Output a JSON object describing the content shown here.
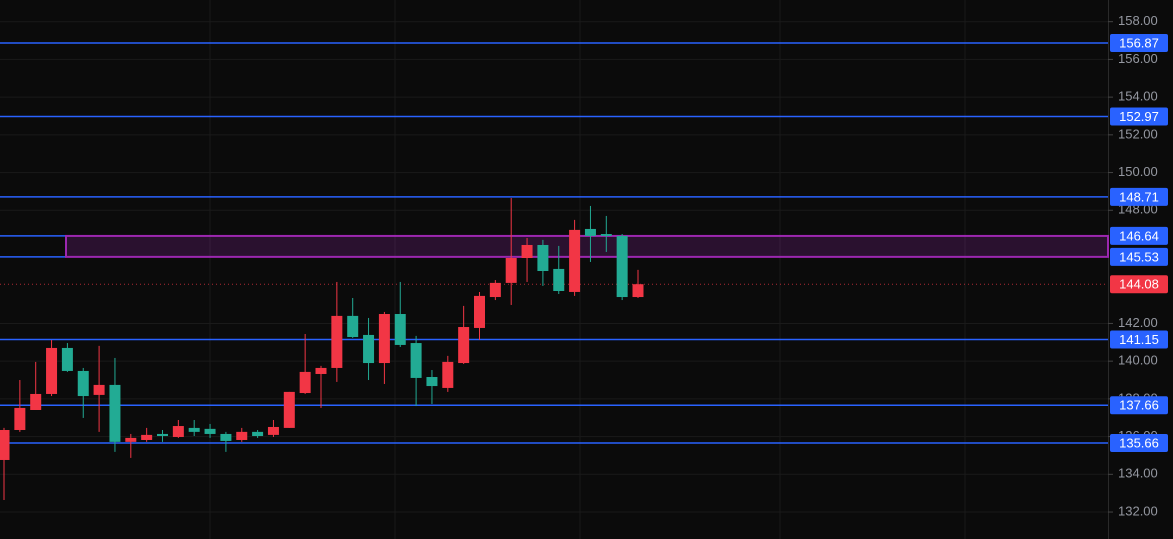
{
  "chart_data": {
    "type": "candlestick",
    "open": [
      134.76,
      136.35,
      137.41,
      138.26,
      140.7,
      139.48,
      138.21,
      138.74,
      135.72,
      135.82,
      136.14,
      135.98,
      136.46,
      136.41,
      136.14,
      135.82,
      136.25,
      136.09,
      136.46,
      138.31,
      139.32,
      139.64,
      142.4,
      141.39,
      139.9,
      142.5,
      140.96,
      139.16,
      138.58,
      139.9,
      141.76,
      143.4,
      144.15,
      145.47,
      146.16,
      144.89,
      143.67,
      147.01,
      146.74,
      146.64,
      143.4
    ],
    "high": [
      136.46,
      139.0,
      139.96,
      141.12,
      140.96,
      139.64,
      140.81,
      140.17,
      136.14,
      136.46,
      136.35,
      136.88,
      136.88,
      136.67,
      136.25,
      136.46,
      136.35,
      136.88,
      138.37,
      141.44,
      139.75,
      144.2,
      143.35,
      142.29,
      142.61,
      144.2,
      141.34,
      139.53,
      140.28,
      142.93,
      143.67,
      144.3,
      148.65,
      146.53,
      146.43,
      146.11,
      147.49,
      148.23,
      147.7,
      146.74,
      144.84
    ],
    "low": [
      132.64,
      136.25,
      137.41,
      138.15,
      139.43,
      136.99,
      136.25,
      135.19,
      134.87,
      135.72,
      135.72,
      135.93,
      136.03,
      135.93,
      135.19,
      135.72,
      135.93,
      135.98,
      136.46,
      138.26,
      137.52,
      138.9,
      141.23,
      139.0,
      138.79,
      140.75,
      137.62,
      137.73,
      138.37,
      139.85,
      141.12,
      143.24,
      142.98,
      144.2,
      143.99,
      143.56,
      143.46,
      145.26,
      145.79,
      143.24,
      143.35
    ],
    "close": [
      136.35,
      137.52,
      138.26,
      140.7,
      139.48,
      138.15,
      138.74,
      135.72,
      135.93,
      136.09,
      136.03,
      136.56,
      136.25,
      136.14,
      135.77,
      136.25,
      136.03,
      136.51,
      138.37,
      139.43,
      139.64,
      142.4,
      141.28,
      139.9,
      142.5,
      140.86,
      139.11,
      138.68,
      139.96,
      141.81,
      143.46,
      144.15,
      145.47,
      146.16,
      144.78,
      143.72,
      146.96,
      146.64,
      146.64,
      143.4,
      144.08
    ],
    "up_color": "#f23645",
    "down_color": "#22ab94",
    "ylim": [
      130.57,
      159.15
    ],
    "yticks": [
      {
        "value": 132,
        "label": "132.00"
      },
      {
        "value": 134,
        "label": "134.00"
      },
      {
        "value": 136,
        "label": "136.00"
      },
      {
        "value": 138,
        "label": "138.00"
      },
      {
        "value": 140,
        "label": "140.00"
      },
      {
        "value": 142,
        "label": "142.00"
      },
      {
        "value": 148,
        "label": "148.00"
      },
      {
        "value": 150,
        "label": "150.00"
      },
      {
        "value": 152,
        "label": "152.00"
      },
      {
        "value": 154,
        "label": "154.00"
      },
      {
        "value": 156,
        "label": "156.00"
      },
      {
        "value": 158,
        "label": "158.00"
      }
    ],
    "grid": true,
    "price_lines": [
      {
        "value": 156.87,
        "color": "#2962ff"
      },
      {
        "value": 152.97,
        "color": "#2962ff"
      },
      {
        "value": 148.71,
        "color": "#2962ff"
      },
      {
        "value": 141.15,
        "color": "#2962ff"
      },
      {
        "value": 137.66,
        "color": "#2962ff"
      },
      {
        "value": 135.66,
        "color": "#2962ff"
      }
    ],
    "zone": {
      "top": 146.64,
      "bottom": 145.53,
      "color": "#9c27b0",
      "tag_color": "#2962ff"
    },
    "last_price": {
      "value": 144.08,
      "color": "#f23645"
    }
  }
}
